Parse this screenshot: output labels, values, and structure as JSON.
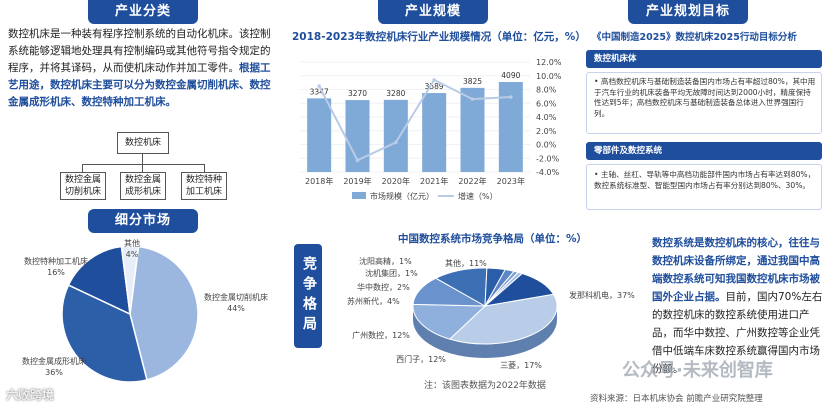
{
  "sections": {
    "category_title": "产业分类",
    "scale_title": "产业规模",
    "goal_title": "产业规划目标",
    "market_title": "细分市场",
    "competition_title": "竞争格局"
  },
  "intro": {
    "text_plain": "数控机床是一种装有程序控制系统的自动化机床。该控制系统能够逻辑地处理具有控制编码或其他符号指令规定的程序，并将其译码，从而使机床动作并加工零件。",
    "text_highlight": "根据工艺用途，数控机床主要可以分为数控金属切削机床、数控金属成形机床、数控特种加工机床。"
  },
  "tree": {
    "root": "数控机床",
    "children": [
      "数控金属切削机床",
      "数控金属成形机床",
      "数控特种加工机床"
    ]
  },
  "scale_chart_title": "2018-2023年数控机床行业产业规模情况（单位：亿元，%）",
  "goals": {
    "heading": "《中国制造2025》数控机床2025行动目标分析",
    "block1_head": "数控机床体",
    "block1_body": "高档数控机床与基础制造装备国内市场占有率超过80%，其中用于汽车行业的机床装备平均无故障时间达到2000小时，精度保持性达到5年；高档数控机床与基础制造装备总体进入世界强国行列。",
    "block2_head": "零部件及数控系统",
    "block2_body": "主轴、丝杠、导轨等中高档功能部件国内市场占有率达到80%，数控系统标准型、智能型国内市场占有率分别达到80%、30%。"
  },
  "competition": {
    "chart_title": "中国数控系统市场竞争格局（单位：%）",
    "note": "注：该图表数据为2022年数据",
    "source": "资料来源：日本机床协会 前瞻产业研究院整理",
    "text_plain1": "数控系统是数控机床的核心，往往与数控机床设备所绑定，通过我国中高端数控系统可知我国数控机床市场被国外企业占据。",
    "text_plain2": "目前，国内70%左右的数控机床的数控系统使用进口产品，而华中数控、广州数控等企业凭借中低端车床数控系统赢得国内市场份额。"
  },
  "watermark": "公众号·未来创智库",
  "watermark2": "六败跨境",
  "chart_data": [
    {
      "type": "bar",
      "title": "2018-2023年数控机床行业产业规模情况（单位：亿元，%）",
      "categories": [
        "2018年",
        "2019年",
        "2020年",
        "2021年",
        "2022年",
        "2023年"
      ],
      "series": [
        {
          "name": "市场规模（亿元）",
          "values": [
            3347,
            3270,
            3280,
            3589,
            3825,
            4090
          ],
          "type": "bar"
        },
        {
          "name": "增速（%）",
          "values": [
            8.5,
            -2.3,
            0.3,
            9.4,
            6.6,
            6.9
          ],
          "type": "line"
        }
      ],
      "yright_ticks": [
        "12.0%",
        "10.0%",
        "8.0%",
        "6.0%",
        "4.0%",
        "2.0%",
        "0.0%",
        "-2.0%",
        "-4.0%"
      ],
      "yright_lim": [
        -4,
        12
      ],
      "legend_position": "bottom",
      "colors": {
        "bar": "#7fa9d6",
        "line": "#b9cbe6"
      }
    },
    {
      "type": "pie",
      "title": "细分市场",
      "labels": [
        "数控金属切削机床",
        "数控金属成形机床",
        "数控特种加工机床",
        "其他"
      ],
      "values": [
        44,
        36,
        16,
        4
      ],
      "display_labels": [
        "数控金属切削机床\n44%",
        "数控金属成形机床\n36%",
        "数控特种加工机床\n16%",
        "其他\n4%"
      ],
      "colors": [
        "#9bb7e0",
        "#2c5fa8",
        "#1f4e9c",
        "#e8eef8"
      ]
    },
    {
      "type": "pie",
      "title": "中国数控系统市场竞争格局（单位：%）",
      "labels": [
        "发那科机电",
        "三菱",
        "西门子",
        "广州数控",
        "苏州新代",
        "华中数控",
        "沈机集团",
        "沈阳高精",
        "其他"
      ],
      "values": [
        37,
        17,
        12,
        12,
        4,
        2,
        1,
        1,
        11
      ],
      "display_labels": [
        "发那科机电，37%",
        "三菱，17%",
        "西门子，12%",
        "广州数控，12%",
        "苏州新代，4%",
        "华中数控，2%",
        "沈机集团，1%",
        "沈阳高精，1%",
        "其他，11%"
      ],
      "colors": [
        "#b9cde9",
        "#8fb0dc",
        "#6a93cd",
        "#3c6fb4",
        "#2a5ea8",
        "#5c86c4",
        "#7ea2d4",
        "#a3bfe3",
        "#1f4e9c"
      ]
    }
  ]
}
